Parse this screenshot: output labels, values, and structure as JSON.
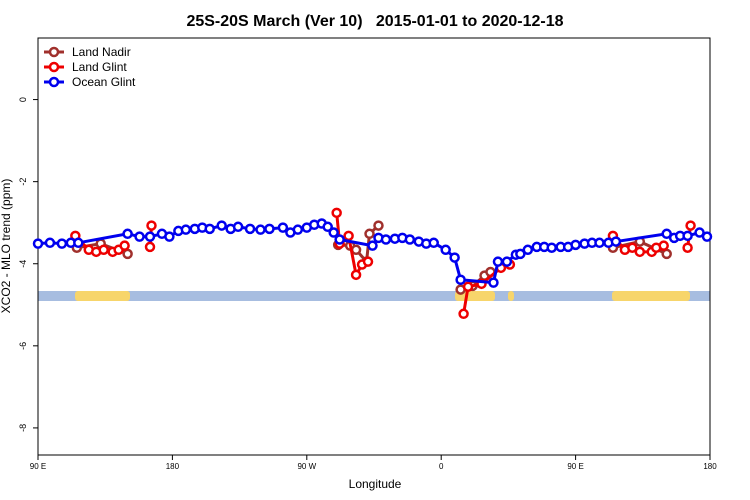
{
  "chart_data": {
    "type": "line",
    "title": "25S-20S March (Ver 10)   2015-01-01 to 2020-12-18",
    "x_label": "Longitude",
    "y_label": "XCO2 - MLO trend (ppm)",
    "xlim": [
      -270,
      180
    ],
    "xticks": [
      {
        "value": -270,
        "label": "90 E"
      },
      {
        "value": -180,
        "label": "180"
      },
      {
        "value": -90,
        "label": "90 W"
      },
      0,
      {
        "value": 90,
        "label": "90 E"
      },
      180
    ],
    "ylim": [
      -8.66,
      1.5
    ],
    "yticks": [
      0,
      -2,
      -4,
      -6,
      -8
    ],
    "legend": "top-left",
    "series": [
      {
        "name": "Land Nadir",
        "color": "#a0302c",
        "x": [
          -244,
          -228,
          -210,
          null,
          -69,
          -61,
          -57,
          -50,
          -48,
          -42,
          null,
          13,
          21,
          29,
          33,
          null,
          115,
          133,
          151
        ],
        "values": [
          -3.61,
          -3.51,
          -3.76,
          null,
          -3.54,
          -3.56,
          -3.66,
          -3.95,
          -3.27,
          -3.07,
          null,
          -4.63,
          -4.54,
          -4.29,
          -4.2,
          null,
          -3.61,
          -3.46,
          -3.76
        ]
      },
      {
        "name": "Land Glint",
        "color": "#ee0000",
        "x": [
          -245,
          -236,
          -231,
          -226,
          -220,
          -216,
          -212,
          null,
          -195,
          -194,
          null,
          -70,
          -68,
          -62,
          -57,
          -53,
          -49,
          null,
          15,
          18,
          27,
          40,
          46,
          null,
          115,
          123,
          128,
          133,
          141,
          144,
          149,
          null,
          165,
          167
        ],
        "values": [
          -3.32,
          -3.66,
          -3.71,
          -3.66,
          -3.71,
          -3.66,
          -3.56,
          null,
          -3.59,
          -3.07,
          null,
          -2.76,
          -3.51,
          -3.32,
          -4.27,
          -4.02,
          -3.95,
          null,
          -5.22,
          -4.56,
          -4.49,
          -4.1,
          -4.02,
          null,
          -3.32,
          -3.66,
          -3.61,
          -3.71,
          -3.71,
          -3.61,
          -3.56,
          null,
          -3.61,
          -3.07
        ]
      },
      {
        "name": "Ocean Glint",
        "color": "#0000ee",
        "x": [
          -270,
          -262,
          -254,
          -248,
          -243,
          -210,
          -202,
          -195,
          -187,
          -182,
          -176,
          -171,
          -165,
          -160,
          -155,
          -147,
          -141,
          -136,
          -128,
          -121,
          -115,
          -106,
          -101,
          -96,
          -90,
          -85,
          -80,
          -76,
          -72,
          -68,
          -46,
          -42,
          -37,
          -31,
          -26,
          -21,
          -15,
          -10,
          -5,
          3,
          9,
          13,
          35,
          38,
          44,
          50,
          53,
          58,
          64,
          69,
          74,
          80,
          85,
          90,
          96,
          101,
          106,
          112,
          117,
          151,
          156,
          160,
          165,
          173,
          178
        ],
        "values": [
          -3.51,
          -3.49,
          -3.51,
          -3.49,
          -3.49,
          -3.27,
          -3.34,
          -3.34,
          -3.27,
          -3.34,
          -3.2,
          -3.17,
          -3.15,
          -3.12,
          -3.15,
          -3.07,
          -3.15,
          -3.1,
          -3.15,
          -3.17,
          -3.15,
          -3.12,
          -3.24,
          -3.17,
          -3.12,
          -3.05,
          -3.02,
          -3.1,
          -3.24,
          -3.41,
          -3.56,
          -3.37,
          -3.41,
          -3.39,
          -3.37,
          -3.41,
          -3.46,
          -3.51,
          -3.49,
          -3.66,
          -3.85,
          -4.39,
          -4.46,
          -3.95,
          -3.95,
          -3.78,
          -3.76,
          -3.66,
          -3.59,
          -3.59,
          -3.61,
          -3.59,
          -3.59,
          -3.54,
          -3.51,
          -3.49,
          -3.49,
          -3.49,
          -3.46,
          -3.27,
          -3.37,
          -3.32,
          -3.32,
          -3.24,
          -3.34
        ]
      }
    ]
  }
}
